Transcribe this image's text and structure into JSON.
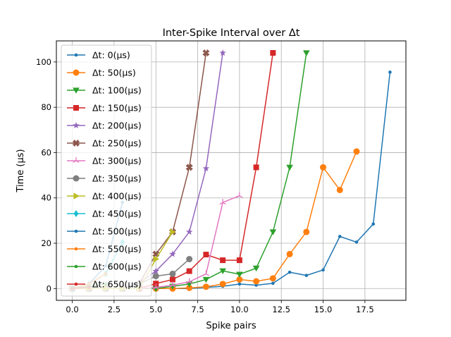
{
  "chart_data": {
    "type": "line",
    "title": "Inter-Spike Interval over Δt",
    "xlabel": "Spike pairs",
    "ylabel": "Time (μs)",
    "xlim": [
      -0.95,
      19.95
    ],
    "ylim": [
      -5.2,
      109.3
    ],
    "xticks": [
      0,
      2.5,
      5,
      7.5,
      10,
      12.5,
      15,
      17.5
    ],
    "xtick_labels": [
      "0.0",
      "2.5",
      "5.0",
      "7.5",
      "10.0",
      "12.5",
      "15.0",
      "17.5"
    ],
    "yticks": [
      0,
      20,
      40,
      60,
      80,
      100
    ],
    "ytick_labels": [
      "0",
      "20",
      "40",
      "60",
      "80",
      "100"
    ],
    "grid": true,
    "legend_position": "top-left",
    "series": [
      {
        "name": "Δt: 0(μs)",
        "color": "#1f77b4",
        "marker": "dot",
        "x": [
          0,
          1,
          2,
          3,
          4,
          5,
          6,
          7,
          8,
          9,
          10,
          11,
          12,
          13,
          14,
          15,
          16,
          17,
          18,
          19
        ],
        "y": [
          0,
          0,
          0,
          0,
          0,
          0,
          0,
          0,
          0.5,
          1,
          2,
          1.5,
          2.3,
          7.2,
          5.8,
          8.2,
          23,
          20.5,
          28.5,
          95.5
        ]
      },
      {
        "name": "Δt: 50(μs)",
        "color": "#ff7f0e",
        "marker": "circle",
        "x": [
          0,
          1,
          2,
          3,
          4,
          5,
          6,
          7,
          8,
          9,
          10,
          11,
          12,
          13,
          14,
          15,
          16,
          17
        ],
        "y": [
          0,
          0,
          0,
          0,
          0,
          0,
          0,
          0.3,
          0.8,
          2,
          4,
          3.2,
          4.5,
          15.2,
          25,
          53.5,
          43.5,
          60.5
        ]
      },
      {
        "name": "Δt: 100(μs)",
        "color": "#2ca02c",
        "marker": "triangle-down",
        "x": [
          0,
          1,
          2,
          3,
          4,
          5,
          6,
          7,
          8,
          9,
          10,
          11,
          12,
          13,
          14
        ],
        "y": [
          0,
          0,
          0,
          0,
          0,
          0,
          1,
          2,
          4,
          7.8,
          6.3,
          9,
          25,
          53.5,
          104
        ]
      },
      {
        "name": "Δt: 150(μs)",
        "color": "#d62728",
        "marker": "square",
        "x": [
          0,
          1,
          2,
          3,
          4,
          5,
          6,
          7,
          8,
          9,
          10,
          11,
          12
        ],
        "y": [
          0,
          0,
          0,
          0,
          0,
          2.2,
          4,
          7.7,
          15,
          12.5,
          12.5,
          53.5,
          104
        ]
      },
      {
        "name": "Δt: 200(μs)",
        "color": "#9467bd",
        "marker": "star",
        "x": [
          0,
          1,
          2,
          3,
          4,
          5,
          6,
          7,
          8,
          9
        ],
        "y": [
          0,
          0,
          0,
          0,
          2.5,
          7.7,
          15.2,
          25,
          53,
          104
        ]
      },
      {
        "name": "Δt: 250(μs)",
        "color": "#8c564b",
        "marker": "x",
        "x": [
          0,
          1,
          2,
          3,
          4,
          5,
          6,
          7,
          8
        ],
        "y": [
          0,
          0,
          0,
          0,
          2,
          15.2,
          25,
          53.5,
          104
        ]
      },
      {
        "name": "Δt: 300(μs)",
        "color": "#e377c2",
        "marker": "tri",
        "x": [
          0,
          1,
          2,
          3,
          4,
          5,
          6,
          7,
          8,
          9,
          10
        ],
        "y": [
          0,
          0,
          0,
          0,
          0,
          0.5,
          1.5,
          3,
          6.5,
          38,
          41
        ]
      },
      {
        "name": "Δt: 350(μs)",
        "color": "#7f7f7f",
        "marker": "circle",
        "x": [
          0,
          1,
          2,
          3,
          4,
          5,
          6,
          7
        ],
        "y": [
          0,
          0,
          0,
          0,
          2,
          5.5,
          6.5,
          13
        ]
      },
      {
        "name": "Δt: 400(μs)",
        "color": "#bcbd22",
        "marker": "triangle-right",
        "x": [
          0,
          1,
          2,
          3,
          4,
          5,
          6
        ],
        "y": [
          0,
          0,
          0,
          0,
          0,
          13,
          25
        ]
      },
      {
        "name": "Δt: 450(μs)",
        "color": "#17becf",
        "marker": "diamond",
        "x": [
          0,
          1,
          2,
          3
        ],
        "y": [
          0,
          2,
          6.5,
          20.5
        ]
      },
      {
        "name": "Δt: 500(μs)",
        "color": "#1f77b4",
        "marker": "dot",
        "x": [
          0,
          1,
          2,
          3
        ],
        "y": [
          0,
          2,
          10,
          38
        ]
      },
      {
        "name": "Δt: 550(μs)",
        "color": "#ff7f0e",
        "marker": "dot",
        "x": [
          0,
          1,
          2
        ],
        "y": [
          0,
          2,
          6.5
        ]
      },
      {
        "name": "Δt: 600(μs)",
        "color": "#2ca02c",
        "marker": "dot",
        "x": [
          0,
          1,
          2
        ],
        "y": [
          0,
          1,
          2
        ]
      },
      {
        "name": "Δt: 650(μs)",
        "color": "#d62728",
        "marker": "dot",
        "x": [
          0,
          1
        ],
        "y": [
          0,
          0.5
        ]
      }
    ]
  }
}
